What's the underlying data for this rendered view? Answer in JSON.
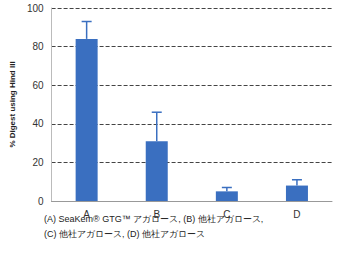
{
  "chart_data": {
    "type": "bar",
    "ylabel": "% Digest using Hind III",
    "categories": [
      "A",
      "B",
      "C",
      "D"
    ],
    "values": [
      84,
      31,
      5,
      8
    ],
    "errors": [
      9,
      15,
      2,
      3
    ],
    "color": "#3a6fc0",
    "ylim": [
      0,
      100
    ],
    "yticks": [
      0,
      20,
      40,
      60,
      80,
      100
    ],
    "grid": true,
    "caption": [
      "(A) SeaKem® GTG™ アガロース, (B) 他社アガロース,",
      "(C) 他社アガロース, (D) 他社アガロース"
    ]
  }
}
